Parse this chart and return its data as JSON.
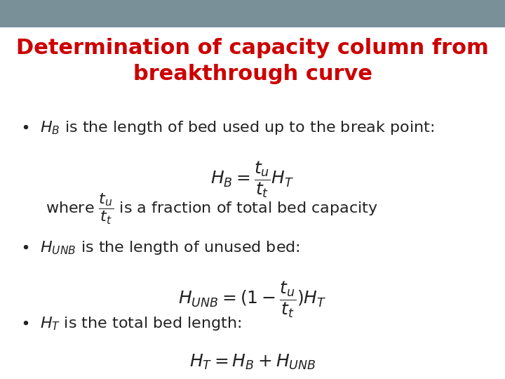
{
  "title_line1": "Determination of capacity column from",
  "title_line2": "breakthrough curve",
  "title_color": "#cc0000",
  "title_fontsize": 22,
  "background_color": "#ffffff",
  "header_bar_color": "#7a9099",
  "header_bar_height": 0.072,
  "text_color": "#222222",
  "bullet1_text": "$H_B$ is the length of bed used up to the break point:",
  "eq1": "$H_B = \\dfrac{t_u}{t_t} H_T$",
  "where_text": "where $\\dfrac{t_u}{t_t}$ is a fraction of total bed capacity",
  "bullet2_text": "$H_{UNB}$ is the length of unused bed:",
  "eq2": "$H_{UNB} = (1 - \\dfrac{t_u}{t_t}) H_T$",
  "bullet3_text": "$H_T$ is the total bed length:",
  "eq3": "$H_T = H_B + H_{UNB}$",
  "body_fontsize": 16,
  "eq_fontsize": 18
}
